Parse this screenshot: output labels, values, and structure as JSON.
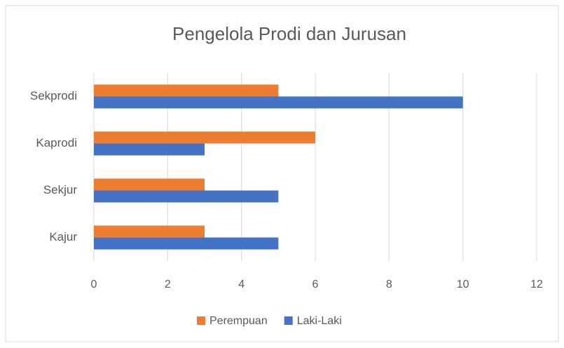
{
  "chart_data": {
    "type": "barh",
    "title": "Pengelola Prodi dan Jurusan",
    "categories": [
      "Sekprodi",
      "Kaprodi",
      "Sekjur",
      "Kajur"
    ],
    "series": [
      {
        "name": "Perempuan",
        "color": "#ed7d31",
        "values": [
          5,
          6,
          3,
          3
        ]
      },
      {
        "name": "Laki-Laki",
        "color": "#4472c4",
        "values": [
          10,
          3,
          5,
          5
        ]
      }
    ],
    "xlim": [
      0,
      12
    ],
    "xticks": [
      0,
      2,
      4,
      6,
      8,
      10,
      12
    ],
    "grid": true,
    "legend": "bottom"
  }
}
